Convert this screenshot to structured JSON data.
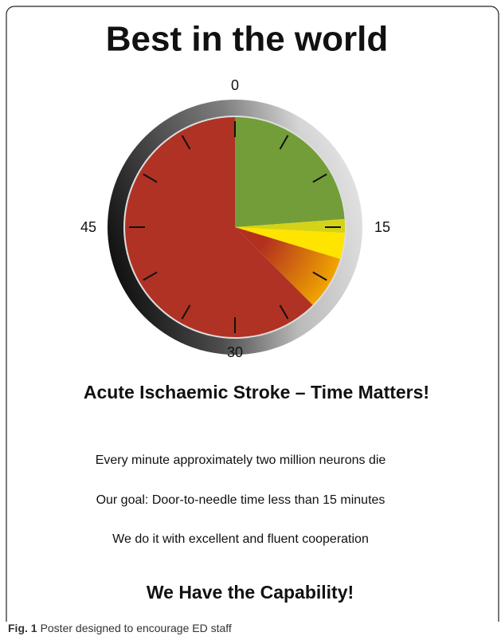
{
  "poster": {
    "title": "Best in the world",
    "clock_labels": [
      "0",
      "15",
      "30",
      "45"
    ],
    "headline": "Acute Ischaemic Stroke – Time Matters!",
    "lines": [
      "Every minute approximately two million neurons die",
      "Our goal: Door-to-needle time less than 15 minutes",
      "We do it with excellent and fluent cooperation"
    ],
    "closing": "We Have the Capability!"
  },
  "caption": {
    "label": "Fig. 1",
    "text": "Poster designed to encourage ED staff"
  }
}
